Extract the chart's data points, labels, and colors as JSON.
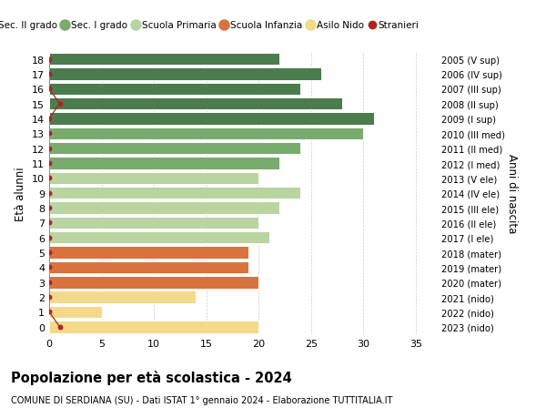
{
  "ages": [
    18,
    17,
    16,
    15,
    14,
    13,
    12,
    11,
    10,
    9,
    8,
    7,
    6,
    5,
    4,
    3,
    2,
    1,
    0
  ],
  "years_labels": [
    "2005 (V sup)",
    "2006 (IV sup)",
    "2007 (III sup)",
    "2008 (II sup)",
    "2009 (I sup)",
    "2010 (III med)",
    "2011 (II med)",
    "2012 (I med)",
    "2013 (V ele)",
    "2014 (IV ele)",
    "2015 (III ele)",
    "2016 (II ele)",
    "2017 (I ele)",
    "2018 (mater)",
    "2019 (mater)",
    "2020 (mater)",
    "2021 (nido)",
    "2022 (nido)",
    "2023 (nido)"
  ],
  "values": [
    22,
    26,
    24,
    28,
    31,
    30,
    24,
    22,
    20,
    24,
    22,
    20,
    21,
    19,
    19,
    20,
    14,
    5,
    20
  ],
  "bar_colors": [
    "#4a7c4e",
    "#4a7c4e",
    "#4a7c4e",
    "#4a7c4e",
    "#4a7c4e",
    "#7aab6e",
    "#7aab6e",
    "#7aab6e",
    "#b8d4a0",
    "#b8d4a0",
    "#b8d4a0",
    "#b8d4a0",
    "#b8d4a0",
    "#d9733d",
    "#d9733d",
    "#d9733d",
    "#f5d98b",
    "#f5d98b",
    "#f5d98b"
  ],
  "stranieri_line_x": [
    0,
    0,
    0,
    1,
    0,
    0,
    0,
    0,
    0,
    0,
    0,
    0,
    0,
    0,
    0,
    0,
    0,
    0,
    1
  ],
  "legend_labels": [
    "Sec. II grado",
    "Sec. I grado",
    "Scuola Primaria",
    "Scuola Infanzia",
    "Asilo Nido",
    "Stranieri"
  ],
  "legend_colors": [
    "#4a7c4e",
    "#7aab6e",
    "#b8d4a0",
    "#d9733d",
    "#f5d98b",
    "#b22222"
  ],
  "title": "Popolazione per età scolastica - 2024",
  "subtitle": "COMUNE DI SERDIANA (SU) - Dati ISTAT 1° gennaio 2024 - Elaborazione TUTTITALIA.IT",
  "ylabel_left": "Età alunni",
  "ylabel_right": "Anni di nascita",
  "xlim": [
    0,
    37
  ],
  "xticks": [
    0,
    5,
    10,
    15,
    20,
    25,
    30,
    35
  ],
  "background_color": "#ffffff",
  "grid_color": "#cccccc",
  "bar_height": 0.82
}
